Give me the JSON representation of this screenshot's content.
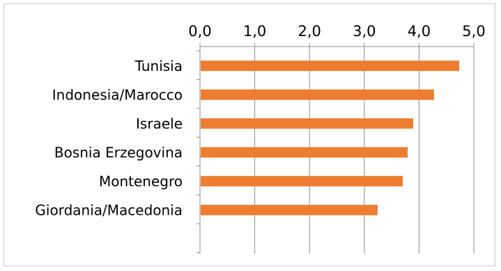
{
  "chart_data": {
    "type": "bar",
    "orientation": "horizontal",
    "categories": [
      "Tunisia",
      "Indonesia/Marocco",
      "Israele",
      "Bosnia Erzegovina",
      "Montenegro",
      "Giordania/Macedonia"
    ],
    "values": [
      4.72,
      4.26,
      3.88,
      3.78,
      3.69,
      3.23
    ],
    "xticks": [
      "0,0",
      "1,0",
      "2,0",
      "3,0",
      "4,0",
      "5,0"
    ],
    "xlim": [
      0,
      5
    ],
    "axis_position": "top",
    "bar_color": "#ED7D31",
    "grid": true,
    "title": "",
    "xlabel": "",
    "ylabel": ""
  }
}
